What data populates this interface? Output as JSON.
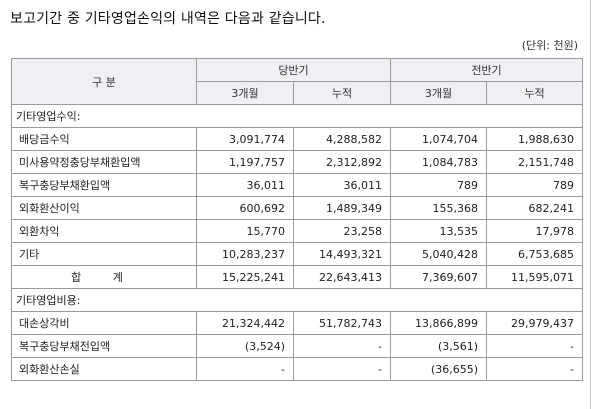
{
  "heading": "보고기간 중 기타영업손익의 내역은 다음과 같습니다.",
  "unit": "(단위: 천원)",
  "table": {
    "header": {
      "category": "구 분",
      "current_period": "당반기",
      "previous_period": "전반기",
      "three_months": "3개월",
      "cumulative": "누적"
    },
    "sections": [
      {
        "title": "기타영업수익:",
        "rows": [
          {
            "label": "배당금수익",
            "values": [
              "3,091,774",
              "4,288,582",
              "1,074,704",
              "1,988,630"
            ]
          },
          {
            "label": "미사용약정충당부채환입액",
            "values": [
              "1,197,757",
              "2,312,892",
              "1,084,783",
              "2,151,748"
            ]
          },
          {
            "label": "복구충당부채환입액",
            "values": [
              "36,011",
              "36,011",
              "789",
              "789"
            ]
          },
          {
            "label": "외화환산이익",
            "values": [
              "600,692",
              "1,489,349",
              "155,368",
              "682,241"
            ]
          },
          {
            "label": "외환차익",
            "values": [
              "15,770",
              "23,258",
              "13,535",
              "17,978"
            ]
          },
          {
            "label": "기타",
            "values": [
              "10,283,237",
              "14,493,321",
              "5,040,428",
              "6,753,685"
            ]
          }
        ],
        "total": {
          "label": "합 계",
          "values": [
            "15,225,241",
            "22,643,413",
            "7,369,607",
            "11,595,071"
          ]
        }
      },
      {
        "title": "기타영업비용:",
        "rows": [
          {
            "label": "대손상각비",
            "values": [
              "21,324,442",
              "51,782,743",
              "13,866,899",
              "29,979,437"
            ]
          },
          {
            "label": "복구충당부채전입액",
            "values": [
              "(3,524)",
              "-",
              "(3,561)",
              "-"
            ]
          },
          {
            "label": "외화환산손실",
            "values": [
              "-",
              "-",
              "(36,655)",
              "-"
            ]
          }
        ]
      }
    ]
  }
}
